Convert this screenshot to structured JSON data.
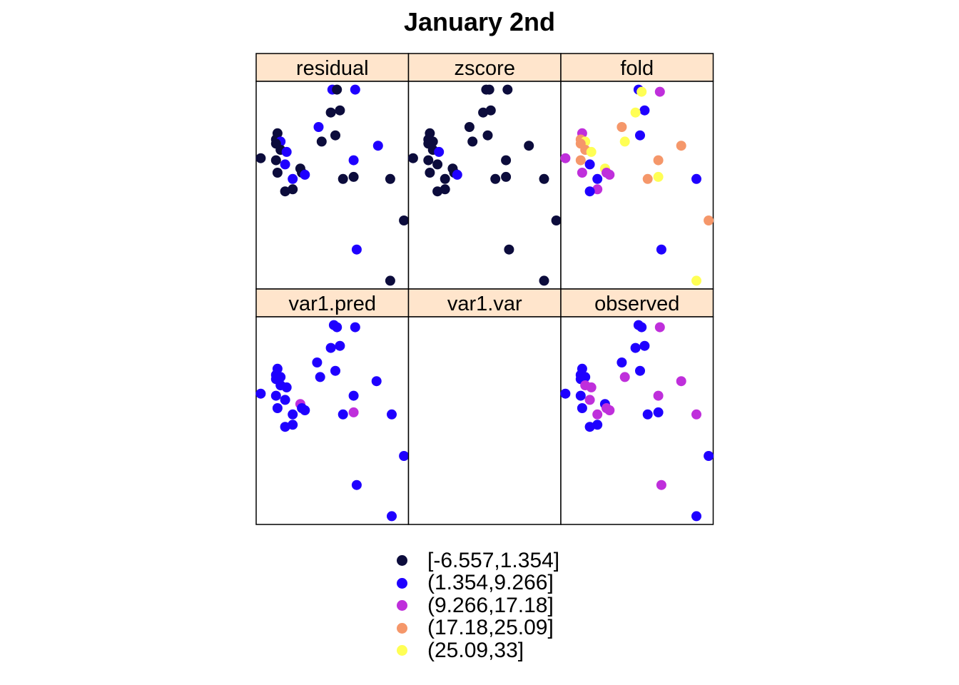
{
  "chart_data": {
    "type": "scatter",
    "title": "January 2nd",
    "layout": "3 columns x 2 rows of panels sharing spatial x/y (no axes printed)",
    "xlim": [
      0,
      100
    ],
    "ylim": [
      0,
      100
    ],
    "panels": [
      {
        "name": "residual",
        "points": [
          {
            "x": 50,
            "y": 96,
            "class": 1
          },
          {
            "x": 53,
            "y": 96,
            "class": 0
          },
          {
            "x": 65,
            "y": 96,
            "class": 1
          },
          {
            "x": 55,
            "y": 86,
            "class": 0
          },
          {
            "x": 49,
            "y": 85,
            "class": 0
          },
          {
            "x": 41,
            "y": 78,
            "class": 1
          },
          {
            "x": 52,
            "y": 74,
            "class": 0
          },
          {
            "x": 14,
            "y": 75,
            "class": 0
          },
          {
            "x": 43,
            "y": 71,
            "class": 0
          },
          {
            "x": 13,
            "y": 72,
            "class": 0
          },
          {
            "x": 16,
            "y": 71,
            "class": 1
          },
          {
            "x": 13,
            "y": 70,
            "class": 0
          },
          {
            "x": 16,
            "y": 67,
            "class": 0
          },
          {
            "x": 20,
            "y": 66,
            "class": 1
          },
          {
            "x": 80,
            "y": 69,
            "class": 1
          },
          {
            "x": 3,
            "y": 63,
            "class": 0
          },
          {
            "x": 13,
            "y": 62,
            "class": 0
          },
          {
            "x": 64,
            "y": 62,
            "class": 1
          },
          {
            "x": 19,
            "y": 60,
            "class": 1
          },
          {
            "x": 29,
            "y": 58,
            "class": 0
          },
          {
            "x": 30,
            "y": 56,
            "class": 0
          },
          {
            "x": 14,
            "y": 56,
            "class": 0
          },
          {
            "x": 32,
            "y": 55,
            "class": 1
          },
          {
            "x": 64,
            "y": 54,
            "class": 0
          },
          {
            "x": 57,
            "y": 53,
            "class": 0
          },
          {
            "x": 24,
            "y": 53,
            "class": 1
          },
          {
            "x": 88,
            "y": 53,
            "class": 0
          },
          {
            "x": 24,
            "y": 48,
            "class": 0
          },
          {
            "x": 19,
            "y": 47,
            "class": 0
          },
          {
            "x": 97,
            "y": 33,
            "class": 0
          },
          {
            "x": 66,
            "y": 19,
            "class": 1
          },
          {
            "x": 88,
            "y": 4,
            "class": 0
          }
        ]
      },
      {
        "name": "zscore",
        "points": [
          {
            "x": 51,
            "y": 96,
            "class": 0
          },
          {
            "x": 53,
            "y": 96,
            "class": 0
          },
          {
            "x": 65,
            "y": 96,
            "class": 0
          },
          {
            "x": 54,
            "y": 86,
            "class": 0
          },
          {
            "x": 49,
            "y": 85,
            "class": 0
          },
          {
            "x": 40,
            "y": 78,
            "class": 0
          },
          {
            "x": 52,
            "y": 74,
            "class": 0
          },
          {
            "x": 14,
            "y": 75,
            "class": 0
          },
          {
            "x": 42,
            "y": 71,
            "class": 0
          },
          {
            "x": 13,
            "y": 72,
            "class": 0
          },
          {
            "x": 16,
            "y": 71,
            "class": 0
          },
          {
            "x": 13,
            "y": 70,
            "class": 0
          },
          {
            "x": 16,
            "y": 67,
            "class": 0
          },
          {
            "x": 20,
            "y": 66,
            "class": 1
          },
          {
            "x": 79,
            "y": 69,
            "class": 0
          },
          {
            "x": 3,
            "y": 63,
            "class": 0
          },
          {
            "x": 13,
            "y": 62,
            "class": 0
          },
          {
            "x": 64,
            "y": 62,
            "class": 0
          },
          {
            "x": 19,
            "y": 60,
            "class": 0
          },
          {
            "x": 29,
            "y": 58,
            "class": 0
          },
          {
            "x": 30,
            "y": 56,
            "class": 0
          },
          {
            "x": 14,
            "y": 56,
            "class": 0
          },
          {
            "x": 32,
            "y": 55,
            "class": 1
          },
          {
            "x": 64,
            "y": 54,
            "class": 0
          },
          {
            "x": 57,
            "y": 53,
            "class": 0
          },
          {
            "x": 24,
            "y": 53,
            "class": 0
          },
          {
            "x": 89,
            "y": 53,
            "class": 0
          },
          {
            "x": 24,
            "y": 48,
            "class": 0
          },
          {
            "x": 19,
            "y": 47,
            "class": 0
          },
          {
            "x": 97,
            "y": 33,
            "class": 0
          },
          {
            "x": 66,
            "y": 19,
            "class": 0
          },
          {
            "x": 89,
            "y": 4,
            "class": 0
          }
        ]
      },
      {
        "name": "fold",
        "points": [
          {
            "x": 51,
            "y": 96,
            "class": 1
          },
          {
            "x": 53,
            "y": 95,
            "class": 4
          },
          {
            "x": 65,
            "y": 95,
            "class": 2
          },
          {
            "x": 55,
            "y": 86,
            "class": 1
          },
          {
            "x": 49,
            "y": 85,
            "class": 4
          },
          {
            "x": 40,
            "y": 78,
            "class": 3
          },
          {
            "x": 52,
            "y": 74,
            "class": 1
          },
          {
            "x": 14,
            "y": 75,
            "class": 2
          },
          {
            "x": 42,
            "y": 71,
            "class": 4
          },
          {
            "x": 13,
            "y": 72,
            "class": 3
          },
          {
            "x": 16,
            "y": 71,
            "class": 4
          },
          {
            "x": 13,
            "y": 70,
            "class": 3
          },
          {
            "x": 16,
            "y": 67,
            "class": 3
          },
          {
            "x": 20,
            "y": 66,
            "class": 4
          },
          {
            "x": 79,
            "y": 69,
            "class": 3
          },
          {
            "x": 3,
            "y": 63,
            "class": 2
          },
          {
            "x": 13,
            "y": 62,
            "class": 3
          },
          {
            "x": 64,
            "y": 62,
            "class": 3
          },
          {
            "x": 19,
            "y": 60,
            "class": 1
          },
          {
            "x": 29,
            "y": 58,
            "class": 4
          },
          {
            "x": 30,
            "y": 56,
            "class": 2
          },
          {
            "x": 14,
            "y": 56,
            "class": 2
          },
          {
            "x": 32,
            "y": 55,
            "class": 2
          },
          {
            "x": 64,
            "y": 54,
            "class": 4
          },
          {
            "x": 57,
            "y": 53,
            "class": 3
          },
          {
            "x": 24,
            "y": 53,
            "class": 1
          },
          {
            "x": 89,
            "y": 53,
            "class": 1
          },
          {
            "x": 24,
            "y": 48,
            "class": 2
          },
          {
            "x": 19,
            "y": 47,
            "class": 1
          },
          {
            "x": 97,
            "y": 33,
            "class": 3
          },
          {
            "x": 66,
            "y": 19,
            "class": 1
          },
          {
            "x": 89,
            "y": 4,
            "class": 4
          }
        ]
      },
      {
        "name": "var1.pred",
        "points": [
          {
            "x": 51,
            "y": 96,
            "class": 1
          },
          {
            "x": 53,
            "y": 95,
            "class": 1
          },
          {
            "x": 65,
            "y": 95,
            "class": 1
          },
          {
            "x": 55,
            "y": 86,
            "class": 1
          },
          {
            "x": 49,
            "y": 85,
            "class": 1
          },
          {
            "x": 40,
            "y": 78,
            "class": 1
          },
          {
            "x": 52,
            "y": 74,
            "class": 1
          },
          {
            "x": 14,
            "y": 75,
            "class": 1
          },
          {
            "x": 42,
            "y": 71,
            "class": 1
          },
          {
            "x": 13,
            "y": 72,
            "class": 1
          },
          {
            "x": 16,
            "y": 71,
            "class": 1
          },
          {
            "x": 13,
            "y": 70,
            "class": 1
          },
          {
            "x": 16,
            "y": 67,
            "class": 1
          },
          {
            "x": 20,
            "y": 66,
            "class": 1
          },
          {
            "x": 79,
            "y": 69,
            "class": 1
          },
          {
            "x": 3,
            "y": 63,
            "class": 1
          },
          {
            "x": 13,
            "y": 62,
            "class": 1
          },
          {
            "x": 64,
            "y": 62,
            "class": 1
          },
          {
            "x": 19,
            "y": 60,
            "class": 1
          },
          {
            "x": 29,
            "y": 58,
            "class": 2
          },
          {
            "x": 30,
            "y": 56,
            "class": 1
          },
          {
            "x": 14,
            "y": 56,
            "class": 1
          },
          {
            "x": 32,
            "y": 55,
            "class": 1
          },
          {
            "x": 64,
            "y": 54,
            "class": 2
          },
          {
            "x": 57,
            "y": 53,
            "class": 1
          },
          {
            "x": 24,
            "y": 53,
            "class": 1
          },
          {
            "x": 89,
            "y": 53,
            "class": 1
          },
          {
            "x": 24,
            "y": 48,
            "class": 1
          },
          {
            "x": 19,
            "y": 47,
            "class": 1
          },
          {
            "x": 97,
            "y": 33,
            "class": 1
          },
          {
            "x": 66,
            "y": 19,
            "class": 1
          },
          {
            "x": 89,
            "y": 4,
            "class": 1
          }
        ]
      },
      {
        "name": "var1.var",
        "points": []
      },
      {
        "name": "observed",
        "points": [
          {
            "x": 51,
            "y": 96,
            "class": 1
          },
          {
            "x": 53,
            "y": 95,
            "class": 1
          },
          {
            "x": 65,
            "y": 95,
            "class": 2
          },
          {
            "x": 55,
            "y": 86,
            "class": 1
          },
          {
            "x": 49,
            "y": 85,
            "class": 1
          },
          {
            "x": 40,
            "y": 78,
            "class": 1
          },
          {
            "x": 52,
            "y": 74,
            "class": 1
          },
          {
            "x": 14,
            "y": 75,
            "class": 1
          },
          {
            "x": 42,
            "y": 71,
            "class": 2
          },
          {
            "x": 13,
            "y": 72,
            "class": 1
          },
          {
            "x": 16,
            "y": 71,
            "class": 1
          },
          {
            "x": 13,
            "y": 70,
            "class": 1
          },
          {
            "x": 16,
            "y": 67,
            "class": 2
          },
          {
            "x": 20,
            "y": 66,
            "class": 2
          },
          {
            "x": 79,
            "y": 69,
            "class": 2
          },
          {
            "x": 3,
            "y": 63,
            "class": 1
          },
          {
            "x": 13,
            "y": 62,
            "class": 1
          },
          {
            "x": 64,
            "y": 62,
            "class": 2
          },
          {
            "x": 19,
            "y": 60,
            "class": 2
          },
          {
            "x": 29,
            "y": 58,
            "class": 1
          },
          {
            "x": 30,
            "y": 56,
            "class": 2
          },
          {
            "x": 14,
            "y": 56,
            "class": 1
          },
          {
            "x": 32,
            "y": 55,
            "class": 2
          },
          {
            "x": 64,
            "y": 54,
            "class": 1
          },
          {
            "x": 57,
            "y": 53,
            "class": 1
          },
          {
            "x": 24,
            "y": 53,
            "class": 2
          },
          {
            "x": 89,
            "y": 53,
            "class": 2
          },
          {
            "x": 24,
            "y": 48,
            "class": 1
          },
          {
            "x": 19,
            "y": 47,
            "class": 1
          },
          {
            "x": 97,
            "y": 33,
            "class": 1
          },
          {
            "x": 66,
            "y": 19,
            "class": 2
          },
          {
            "x": 89,
            "y": 4,
            "class": 1
          }
        ]
      }
    ],
    "legend": {
      "placement": "bottom",
      "entries": [
        {
          "label": "[-6.557,1.354]",
          "color": "#0c0c3c"
        },
        {
          "label": "(1.354,9.266]",
          "color": "#1f00ff"
        },
        {
          "label": "(9.266,17.18]",
          "color": "#bf2fdb"
        },
        {
          "label": "(17.18,25.09]",
          "color": "#f5976a"
        },
        {
          "label": "(25.09,33]",
          "color": "#ffff55"
        }
      ]
    },
    "strip_color": "#ffe5cc",
    "grid": false
  }
}
